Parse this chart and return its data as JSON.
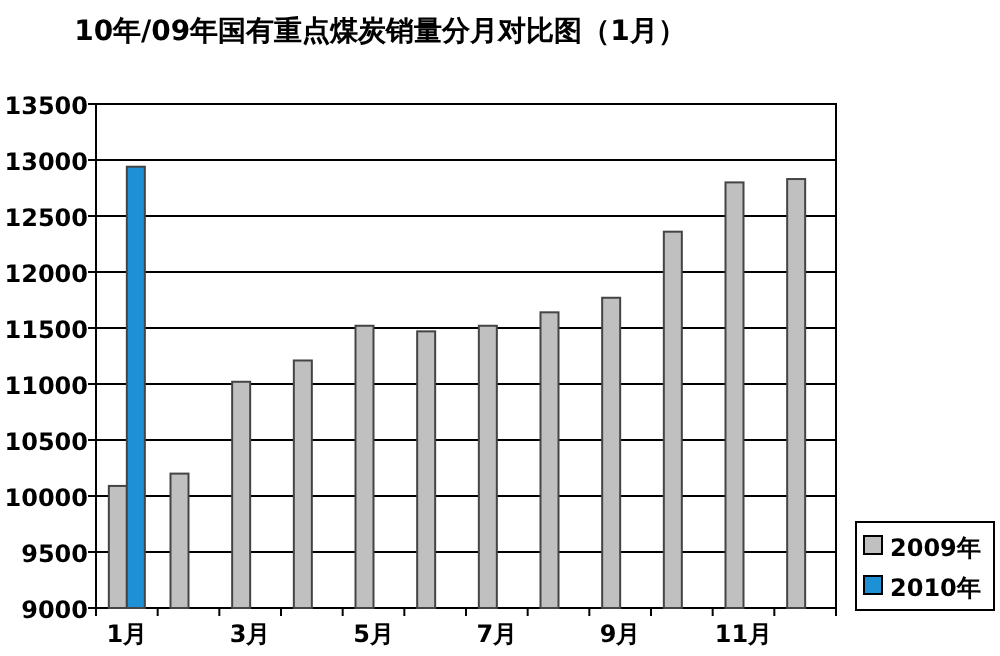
{
  "chart_data": {
    "type": "bar",
    "title": "10年/09年国有重点煤炭销量分月对比图（1月）",
    "categories": [
      "1月",
      null,
      "3月",
      null,
      "5月",
      null,
      "7月",
      null,
      "9月",
      null,
      "11月",
      null
    ],
    "series": [
      {
        "name": "2009年",
        "color": "#c0c0c0",
        "values": [
          10090,
          10200,
          11020,
          11210,
          11520,
          11470,
          11520,
          11640,
          11770,
          12360,
          12800,
          12830
        ]
      },
      {
        "name": "2010年",
        "color": "#1e90d6",
        "values": [
          12940,
          null,
          null,
          null,
          null,
          null,
          null,
          null,
          null,
          null,
          null,
          null
        ]
      }
    ],
    "ylim": [
      9000,
      13500
    ],
    "yticks": [
      9000,
      9500,
      10000,
      10500,
      11000,
      11500,
      12000,
      12500,
      13000,
      13500
    ],
    "grid": "y",
    "legend": "bottom right"
  }
}
